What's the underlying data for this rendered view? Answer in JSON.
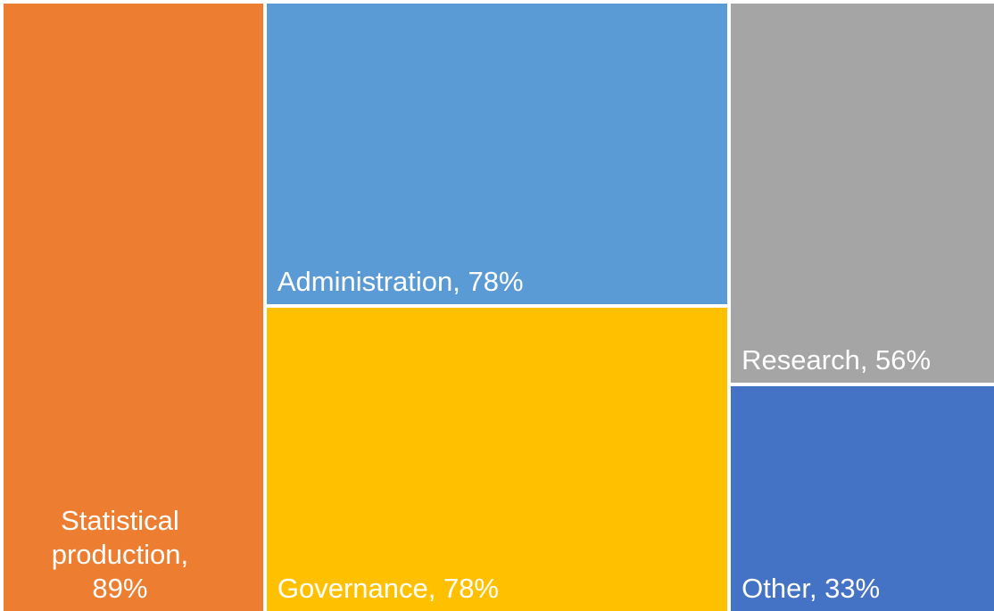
{
  "chart_data": {
    "type": "treemap",
    "values": [
      89,
      78,
      78,
      56,
      33
    ],
    "value_labels": [
      "Statistical production, 89%",
      "Administration, 78%",
      "Governance, 78%",
      "Research, 56%",
      "Other, 33%"
    ],
    "colors": [
      "#ED7D31",
      "#5B9BD5",
      "#FFC000",
      "#A5A5A5",
      "#4472C4"
    ]
  }
}
